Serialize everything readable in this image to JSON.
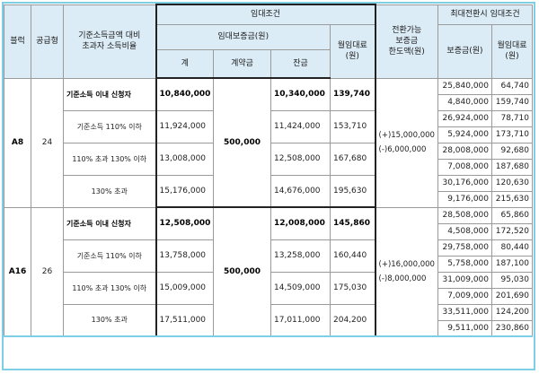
{
  "headers": {
    "block": "블럭",
    "supply_type": "공급형",
    "income_ratio_line1": "기준소득금액 대비",
    "income_ratio_line2": "초과자 소득비율",
    "lease_terms": "임대조건",
    "deposit": "임대보증금(원)",
    "total": "계",
    "contract": "계약금",
    "balance": "잔금",
    "monthly_rent_line1": "월임대료",
    "monthly_rent_line2": "(원)",
    "convertible_line1": "전환가능",
    "convertible_line2": "보증금",
    "convertible_line3": "한도액(원)",
    "max_conversion": "최대전환시 임대조건",
    "conv_deposit": "보증금(원)",
    "conv_rent_line1": "월임대료",
    "conv_rent_line2": "(원)"
  },
  "groups": [
    {
      "block": "A8",
      "supply_type": "24",
      "contract": "500,000",
      "limit_plus": "(+)15,000,000",
      "limit_minus": "(-)6,000,000",
      "rows": [
        {
          "label": "기준소득 이내 신청자",
          "total": "10,840,000",
          "balance": "10,340,000",
          "rent": "139,740",
          "bold": true,
          "conv": [
            [
              "25,840,000",
              "64,740"
            ],
            [
              "4,840,000",
              "159,740"
            ]
          ]
        },
        {
          "label": "기준소득 110% 이하",
          "total": "11,924,000",
          "balance": "11,424,000",
          "rent": "153,710",
          "bold": false,
          "conv": [
            [
              "26,924,000",
              "78,710"
            ],
            [
              "5,924,000",
              "173,710"
            ]
          ]
        },
        {
          "label": "110% 초과 130% 이하",
          "total": "13,008,000",
          "balance": "12,508,000",
          "rent": "167,680",
          "bold": false,
          "conv": [
            [
              "28,008,000",
              "92,680"
            ],
            [
              "7,008,000",
              "187,680"
            ]
          ]
        },
        {
          "label": "130% 초과",
          "total": "15,176,000",
          "balance": "14,676,000",
          "rent": "195,630",
          "bold": false,
          "conv": [
            [
              "30,176,000",
              "120,630"
            ],
            [
              "9,176,000",
              "215,630"
            ]
          ]
        }
      ]
    },
    {
      "block": "A16",
      "supply_type": "26",
      "contract": "500,000",
      "limit_plus": "(+)16,000,000",
      "limit_minus": "(-)8,000,000",
      "rows": [
        {
          "label": "기준소득 이내 신청자",
          "total": "12,508,000",
          "balance": "12,008,000",
          "rent": "145,860",
          "bold": true,
          "conv": [
            [
              "28,508,000",
              "65,860"
            ],
            [
              "4,508,000",
              "172,520"
            ]
          ]
        },
        {
          "label": "기준소득 110% 이하",
          "total": "13,758,000",
          "balance": "13,258,000",
          "rent": "160,440",
          "bold": false,
          "conv": [
            [
              "29,758,000",
              "80,440"
            ],
            [
              "5,758,000",
              "187,100"
            ]
          ]
        },
        {
          "label": "110% 초과 130% 이하",
          "total": "15,009,000",
          "balance": "14,509,000",
          "rent": "175,030",
          "bold": false,
          "conv": [
            [
              "31,009,000",
              "95,030"
            ],
            [
              "7,009,000",
              "201,690"
            ]
          ]
        },
        {
          "label": "130% 초과",
          "total": "17,511,000",
          "balance": "17,011,000",
          "rent": "204,200",
          "bold": false,
          "conv": [
            [
              "33,511,000",
              "124,200"
            ],
            [
              "9,511,000",
              "230,860"
            ]
          ]
        }
      ]
    }
  ]
}
